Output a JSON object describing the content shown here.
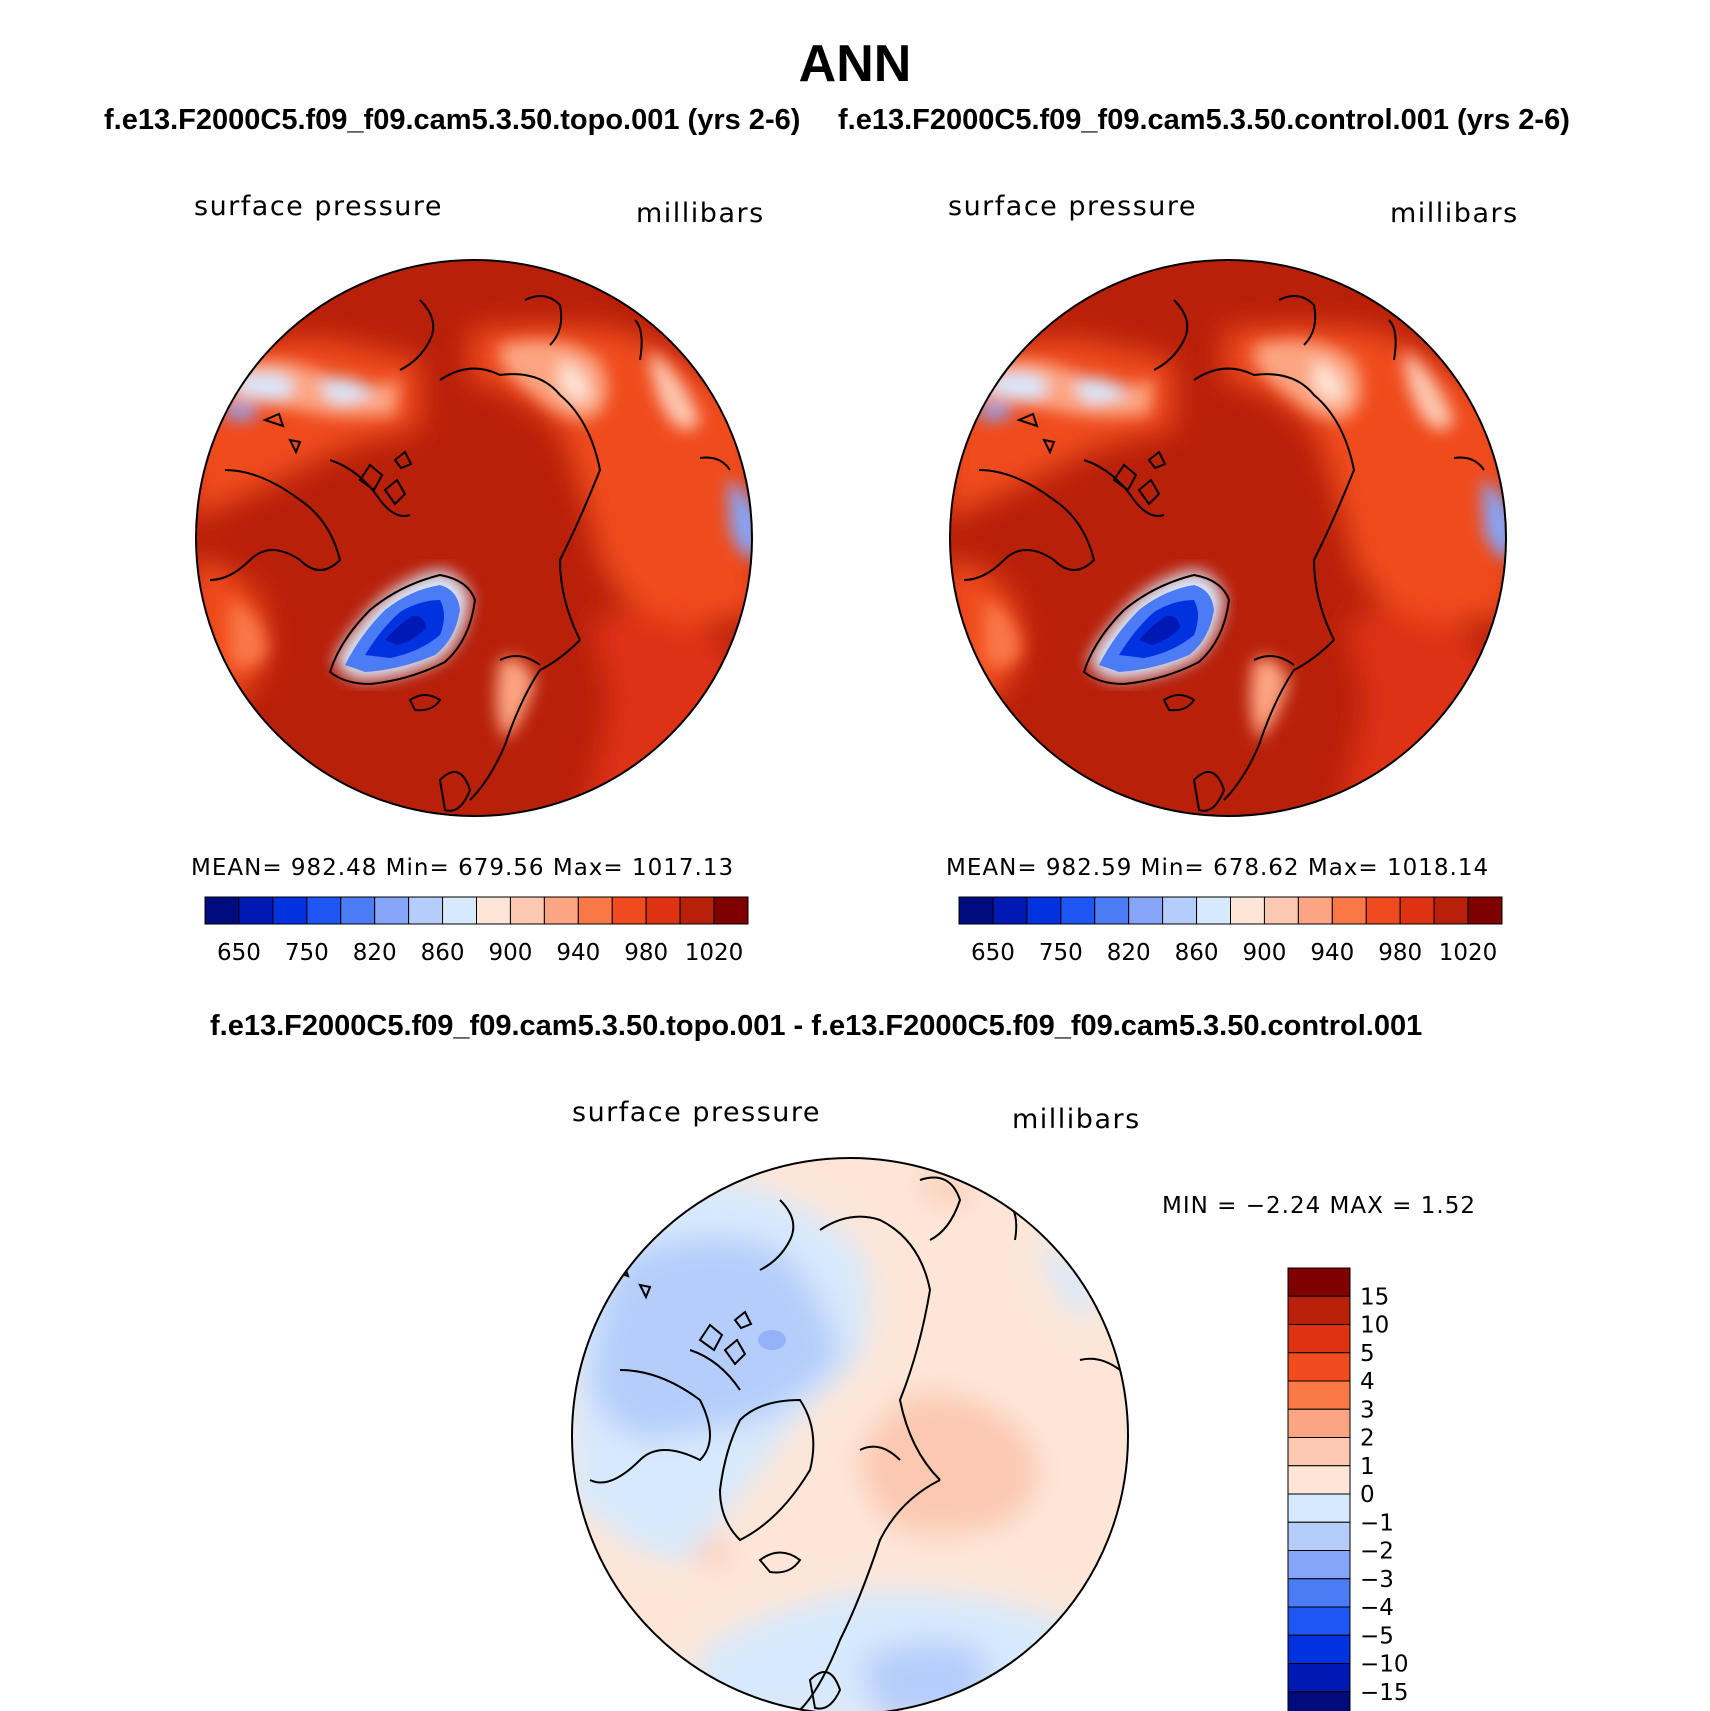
{
  "page": {
    "title": "ANN",
    "diff_title": "f.e13.F2000C5.f09_f09.cam5.3.50.topo.001 - f.e13.F2000C5.f09_f09.cam5.3.50.control.001"
  },
  "panels": [
    {
      "case_title": "f.e13.F2000C5.f09_f09.cam5.3.50.topo.001 (yrs 2-6)",
      "variable": "surface pressure",
      "units": "millibars",
      "stats": "MEAN=  982.48    Min=  679.56    Max=  1017.13"
    },
    {
      "case_title": "f.e13.F2000C5.f09_f09.cam5.3.50.control.001 (yrs 2-6)",
      "variable": "surface pressure",
      "units": "millibars",
      "stats": "MEAN=  982.59    Min=  678.62    Max=  1018.14"
    }
  ],
  "diff_panel": {
    "variable": "surface pressure",
    "units": "millibars",
    "stats": "MIN =   −2.24  MAX =     1.52"
  },
  "colorbar_abs": {
    "colors": [
      "#000c7d",
      "#0019b4",
      "#0032e0",
      "#1e55f5",
      "#4b7bf5",
      "#86a5f8",
      "#b5cdfb",
      "#d7e9fd",
      "#fde6d8",
      "#fcc8b1",
      "#fca582",
      "#fa7846",
      "#f04b1e",
      "#de3212",
      "#b8200a",
      "#7e0000"
    ],
    "labels": [
      "650",
      "750",
      "820",
      "860",
      "900",
      "940",
      "980",
      "1020"
    ]
  },
  "colorbar_diff": {
    "colors": [
      "#7e0000",
      "#b8200a",
      "#de3212",
      "#f04b1e",
      "#fa7846",
      "#fca582",
      "#fcc8b1",
      "#fde6d8",
      "#d7e9fd",
      "#b5cdfb",
      "#86a5f8",
      "#4b7bf5",
      "#1e55f5",
      "#0032e0",
      "#0019b4",
      "#000c7d"
    ],
    "labels": [
      "15",
      "10",
      "5",
      "4",
      "3",
      "2",
      "1",
      "0",
      "−1",
      "−2",
      "−3",
      "−4",
      "−5",
      "−10",
      "−15"
    ]
  }
}
